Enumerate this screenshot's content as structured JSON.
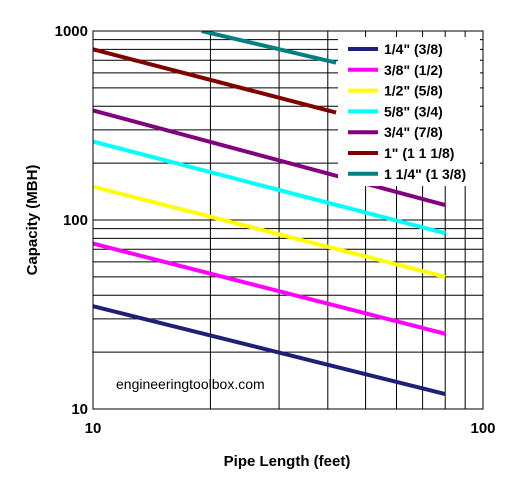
{
  "chart_data": {
    "type": "line",
    "x_scale": "log",
    "y_scale": "log",
    "xlim": [
      10,
      100
    ],
    "ylim": [
      10,
      1000
    ],
    "x_tick_labels": [
      "10",
      "100"
    ],
    "y_tick_labels": [
      "10",
      "100",
      "1000"
    ],
    "xlabel": "Pipe Length (feet)",
    "ylabel": "Capacity (MBH)",
    "grid": true,
    "legend_position": "top-right",
    "annotation": "engineeringtoolbox.com",
    "series": [
      {
        "name": "1/4\" (3/8)",
        "color": "#1f1f7a",
        "x": [
          10,
          80
        ],
        "y": [
          35,
          12
        ]
      },
      {
        "name": "3/8\" (1/2)",
        "color": "#ff00ff",
        "x": [
          10,
          80
        ],
        "y": [
          75,
          25
        ]
      },
      {
        "name": "1/2\" (5/8)",
        "color": "#ffff00",
        "x": [
          10,
          80
        ],
        "y": [
          150,
          50
        ]
      },
      {
        "name": "5/8\" (3/4)",
        "color": "#00ffff",
        "x": [
          10,
          80
        ],
        "y": [
          260,
          85
        ]
      },
      {
        "name": "3/4\" (7/8)",
        "color": "#800080",
        "x": [
          10,
          80
        ],
        "y": [
          380,
          120
        ]
      },
      {
        "name": "1\" (1 1 1/8)",
        "color": "#800000",
        "x": [
          10,
          42
        ],
        "y": [
          800,
          370
        ]
      },
      {
        "name": "1 1/4\" (1 3/8)",
        "color": "#008080",
        "x": [
          19,
          42
        ],
        "y": [
          1000,
          680
        ]
      }
    ]
  }
}
